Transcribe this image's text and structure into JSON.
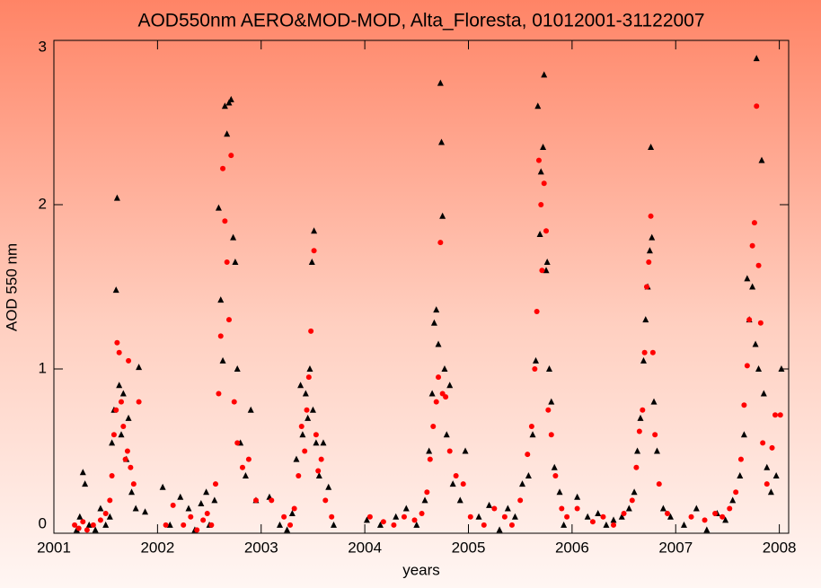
{
  "chart_data": {
    "type": "scatter",
    "title": "AOD550nm AERO&MOD-MOD, Alta_Floresta, 01012001-31122007",
    "x_label": "years",
    "y_label": "AOD 550 nm",
    "xlim": [
      2001,
      2008.09
    ],
    "ylim": [
      0,
      3
    ],
    "xticks": [
      2001,
      2002,
      2003,
      2004,
      2005,
      2006,
      2007,
      2008
    ],
    "yticks": [
      0,
      1,
      2,
      3
    ],
    "series": [
      {
        "color": "#000000",
        "marker": "triangle",
        "x": [
          2001.22,
          2001.25,
          2001.28,
          2001.3,
          2001.34,
          2001.4,
          2001.45,
          2001.5,
          2001.54,
          2001.56,
          2001.58,
          2001.6,
          2001.61,
          2001.63,
          2001.65,
          2001.67,
          2001.7,
          2001.72,
          2001.75,
          2001.79,
          2001.82,
          2001.88,
          2002.05,
          2002.12,
          2002.22,
          2002.3,
          2002.36,
          2002.42,
          2002.47,
          2002.5,
          2002.55,
          2002.59,
          2002.61,
          2002.63,
          2002.65,
          2002.67,
          2002.69,
          2002.71,
          2002.73,
          2002.75,
          2002.77,
          2002.8,
          2002.85,
          2002.9,
          2002.95,
          2003.08,
          2003.18,
          2003.25,
          2003.3,
          2003.34,
          2003.38,
          2003.4,
          2003.43,
          2003.45,
          2003.47,
          2003.49,
          2003.5,
          2003.51,
          2003.53,
          2003.56,
          2003.6,
          2003.65,
          2003.7,
          2004.02,
          2004.15,
          2004.3,
          2004.4,
          2004.5,
          2004.58,
          2004.62,
          2004.65,
          2004.67,
          2004.69,
          2004.71,
          2004.73,
          2004.74,
          2004.75,
          2004.77,
          2004.79,
          2004.82,
          2004.85,
          2004.92,
          2004.97,
          2005.1,
          2005.2,
          2005.3,
          2005.38,
          2005.45,
          2005.52,
          2005.58,
          2005.62,
          2005.65,
          2005.67,
          2005.69,
          2005.7,
          2005.72,
          2005.73,
          2005.75,
          2005.76,
          2005.78,
          2005.8,
          2005.83,
          2005.88,
          2005.92,
          2006.05,
          2006.15,
          2006.25,
          2006.33,
          2006.4,
          2006.48,
          2006.55,
          2006.6,
          2006.63,
          2006.66,
          2006.69,
          2006.71,
          2006.73,
          2006.75,
          2006.76,
          2006.77,
          2006.79,
          2006.82,
          2006.88,
          2006.95,
          2007.08,
          2007.2,
          2007.3,
          2007.4,
          2007.48,
          2007.55,
          2007.62,
          2007.66,
          2007.69,
          2007.71,
          2007.74,
          2007.77,
          2007.78,
          2007.8,
          2007.83,
          2007.85,
          2007.88,
          2007.92,
          2007.97,
          2008.02
        ],
        "values": [
          0.02,
          0.1,
          0.37,
          0.3,
          0.05,
          0.02,
          0.15,
          0.05,
          0.1,
          0.55,
          0.75,
          1.48,
          2.04,
          0.9,
          0.6,
          0.85,
          0.45,
          0.7,
          0.25,
          0.15,
          1.01,
          0.13,
          0.28,
          0.05,
          0.22,
          0.15,
          0.02,
          0.18,
          0.25,
          0.05,
          0.2,
          1.98,
          1.42,
          1.05,
          2.6,
          2.43,
          2.62,
          2.64,
          1.8,
          1.65,
          1.0,
          0.55,
          0.35,
          0.75,
          0.2,
          0.22,
          0.05,
          0.02,
          0.12,
          0.45,
          0.9,
          0.6,
          0.85,
          0.7,
          1.0,
          1.65,
          0.75,
          1.84,
          0.55,
          0.35,
          0.55,
          0.28,
          0.05,
          0.08,
          0.05,
          0.1,
          0.15,
          0.05,
          0.2,
          0.5,
          0.85,
          1.28,
          1.36,
          1.15,
          2.74,
          2.38,
          1.93,
          1.0,
          0.6,
          0.9,
          0.3,
          0.2,
          0.5,
          0.1,
          0.17,
          0.02,
          0.15,
          0.1,
          0.3,
          0.35,
          0.6,
          1.05,
          2.6,
          1.82,
          2.2,
          2.35,
          2.79,
          1.6,
          1.65,
          1.0,
          0.8,
          0.4,
          0.25,
          0.05,
          0.22,
          0.1,
          0.12,
          0.05,
          0.08,
          0.1,
          0.15,
          0.25,
          0.5,
          0.7,
          1.05,
          1.3,
          1.5,
          1.72,
          2.35,
          1.8,
          0.8,
          0.5,
          0.15,
          0.1,
          0.05,
          0.15,
          0.02,
          0.12,
          0.08,
          0.2,
          0.35,
          0.6,
          1.55,
          1.3,
          1.5,
          1.15,
          2.89,
          1.0,
          2.27,
          0.85,
          0.4,
          0.25,
          0.35,
          1.0
        ]
      },
      {
        "color": "#ff0000",
        "marker": "circle",
        "x": [
          2001.2,
          2001.24,
          2001.28,
          2001.32,
          2001.38,
          2001.45,
          2001.5,
          2001.54,
          2001.56,
          2001.58,
          2001.6,
          2001.61,
          2001.63,
          2001.65,
          2001.67,
          2001.69,
          2001.71,
          2001.72,
          2001.74,
          2001.77,
          2001.82,
          2002.08,
          2002.15,
          2002.25,
          2002.32,
          2002.38,
          2002.44,
          2002.48,
          2002.52,
          2002.56,
          2002.59,
          2002.61,
          2002.63,
          2002.65,
          2002.67,
          2002.69,
          2002.71,
          2002.74,
          2002.77,
          2002.82,
          2002.88,
          2002.95,
          2003.1,
          2003.22,
          2003.28,
          2003.32,
          2003.36,
          2003.39,
          2003.42,
          2003.44,
          2003.46,
          2003.48,
          2003.51,
          2003.53,
          2003.55,
          2003.58,
          2003.62,
          2003.68,
          2004.05,
          2004.18,
          2004.28,
          2004.38,
          2004.48,
          2004.55,
          2004.6,
          2004.63,
          2004.66,
          2004.69,
          2004.71,
          2004.73,
          2004.75,
          2004.78,
          2004.82,
          2004.88,
          2004.95,
          2005.02,
          2005.15,
          2005.25,
          2005.35,
          2005.42,
          2005.5,
          2005.57,
          2005.61,
          2005.64,
          2005.66,
          2005.68,
          2005.7,
          2005.71,
          2005.73,
          2005.75,
          2005.77,
          2005.8,
          2005.84,
          2005.9,
          2005.95,
          2006.05,
          2006.2,
          2006.3,
          2006.4,
          2006.5,
          2006.58,
          2006.62,
          2006.65,
          2006.68,
          2006.7,
          2006.72,
          2006.74,
          2006.76,
          2006.78,
          2006.8,
          2006.84,
          2006.92,
          2007.15,
          2007.28,
          2007.38,
          2007.45,
          2007.52,
          2007.58,
          2007.63,
          2007.66,
          2007.69,
          2007.71,
          2007.74,
          2007.76,
          2007.78,
          2007.8,
          2007.82,
          2007.84,
          2007.88,
          2007.93,
          2007.96,
          2008.01
        ],
        "values": [
          0.05,
          0.03,
          0.07,
          0.02,
          0.05,
          0.08,
          0.12,
          0.2,
          0.35,
          0.6,
          0.75,
          1.16,
          1.1,
          0.8,
          0.65,
          0.45,
          0.5,
          1.05,
          0.4,
          0.3,
          0.8,
          0.05,
          0.17,
          0.05,
          0.1,
          0.02,
          0.08,
          0.12,
          0.05,
          0.3,
          0.85,
          1.2,
          2.22,
          1.9,
          1.65,
          1.3,
          2.3,
          0.8,
          0.55,
          0.4,
          0.45,
          0.2,
          0.2,
          0.1,
          0.05,
          0.15,
          0.35,
          0.65,
          0.5,
          0.75,
          0.95,
          1.23,
          1.72,
          0.6,
          0.38,
          0.45,
          0.2,
          0.1,
          0.1,
          0.07,
          0.05,
          0.1,
          0.08,
          0.12,
          0.25,
          0.45,
          0.65,
          0.8,
          0.95,
          1.77,
          0.85,
          0.83,
          0.5,
          0.35,
          0.3,
          0.1,
          0.05,
          0.15,
          0.1,
          0.05,
          0.2,
          0.48,
          0.65,
          1.0,
          1.35,
          2.27,
          2.0,
          1.6,
          2.13,
          1.84,
          0.75,
          0.6,
          0.35,
          0.15,
          0.1,
          0.15,
          0.07,
          0.1,
          0.05,
          0.12,
          0.2,
          0.4,
          0.62,
          0.75,
          1.1,
          1.5,
          1.65,
          1.93,
          1.1,
          0.6,
          0.3,
          0.12,
          0.1,
          0.08,
          0.12,
          0.1,
          0.15,
          0.25,
          0.45,
          0.78,
          1.02,
          1.3,
          1.75,
          1.89,
          2.6,
          1.63,
          1.28,
          0.55,
          0.3,
          0.52,
          0.72,
          0.72
        ]
      }
    ]
  }
}
